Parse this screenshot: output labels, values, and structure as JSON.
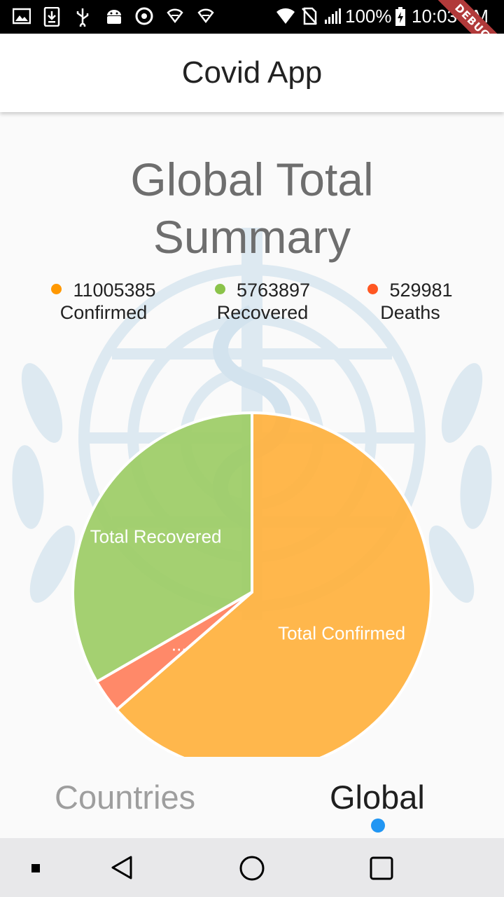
{
  "status_bar": {
    "battery": "100%",
    "time": "10:03 AM",
    "icons": [
      "image-icon",
      "download-icon",
      "usb-icon",
      "android-icon",
      "chrome-icon",
      "wifi-icon",
      "wifi-icon",
      "wifi-icon",
      "no-sim-icon",
      "signal-icon",
      "battery-charging-icon"
    ]
  },
  "debug_banner": "DEBUG",
  "app_bar": {
    "title": "Covid App"
  },
  "summary": {
    "title": "Global Total Summary"
  },
  "legend": [
    {
      "value": "11005385",
      "label": "Confirmed",
      "color": "#ff9800"
    },
    {
      "value": "5763897",
      "label": "Recovered",
      "color": "#8bc34a"
    },
    {
      "value": "529981",
      "label": "Deaths",
      "color": "#ff5722"
    }
  ],
  "chart_data": {
    "type": "pie",
    "categories": [
      "Total Confirmed",
      "Total Recovered",
      "Total Deaths"
    ],
    "values": [
      11005385,
      5763897,
      529981
    ],
    "slice_labels": [
      "Total Confirmed",
      "Total Recovered",
      "..."
    ],
    "colors": [
      "#ffb13d",
      "#9ccc65",
      "#ff7f5c"
    ]
  },
  "tabs": [
    {
      "label": "Countries",
      "active": false
    },
    {
      "label": "Global",
      "active": true
    }
  ],
  "nav_bar": {
    "icons": [
      "recents-dot-icon",
      "back-icon",
      "home-icon",
      "overview-icon"
    ]
  }
}
